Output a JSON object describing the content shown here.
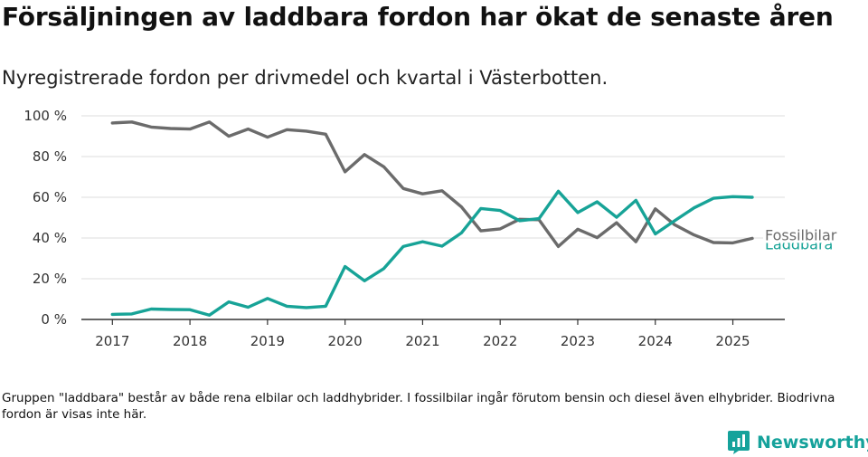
{
  "title": "Försäljningen av laddbara fordon har ökat de senaste åren",
  "subtitle": "Nyregistrerade fordon per drivmedel och kvartal i Västerbotten.",
  "footnote": "Gruppen \"laddbara\" består av både rena elbilar och laddhybrider. I fossilbilar ingår förutom bensin och diesel även elhybrider. Biodrivna fordon är visas inte här.",
  "brand": {
    "name": "Newsworthy",
    "color": "#15a29b"
  },
  "chart_data": {
    "type": "line",
    "title": "Försäljningen av laddbara fordon har ökat de senaste åren",
    "subtitle": "Nyregistrerade fordon per drivmedel och kvartal i Västerbotten.",
    "xlabel": "",
    "ylabel": "",
    "ylim": [
      0,
      100
    ],
    "xlim": [
      2016.6,
      2025.67
    ],
    "grid": true,
    "y_ticks": [
      0,
      20,
      40,
      60,
      80,
      100
    ],
    "y_tick_labels": [
      "0 %",
      "20 %",
      "40 %",
      "60 %",
      "80 %",
      "100 %"
    ],
    "x_ticks": [
      2017,
      2018,
      2019,
      2020,
      2021,
      2022,
      2023,
      2024,
      2025
    ],
    "x_tick_labels": [
      "2017",
      "2018",
      "2019",
      "2020",
      "2021",
      "2022",
      "2023",
      "2024",
      "2025"
    ],
    "x": [
      2017.0,
      2017.25,
      2017.5,
      2017.75,
      2018.0,
      2018.25,
      2018.5,
      2018.75,
      2019.0,
      2019.25,
      2019.5,
      2019.75,
      2020.0,
      2020.25,
      2020.5,
      2020.75,
      2021.0,
      2021.25,
      2021.5,
      2021.75,
      2022.0,
      2022.25,
      2022.5,
      2022.75,
      2023.0,
      2023.25,
      2023.5,
      2023.75,
      2024.0,
      2024.25,
      2024.5,
      2024.75,
      2025.0,
      2025.25
    ],
    "series": [
      {
        "name": "Fossilbilar",
        "color": "#6b6b6b",
        "values": [
          96.5,
          97,
          94.5,
          93.8,
          93.5,
          97,
          90,
          93.5,
          89.5,
          93.2,
          92.5,
          91,
          72.5,
          81,
          75,
          64.3,
          61.7,
          63.2,
          55.3,
          43.5,
          44.5,
          49.2,
          49,
          35.8,
          44.3,
          40.2,
          47.5,
          38.2,
          54.3,
          46.5,
          41.5,
          37.8,
          37.6,
          39.8
        ]
      },
      {
        "name": "Laddbara",
        "color": "#17a397",
        "values": [
          2.5,
          2.7,
          5.1,
          4.9,
          4.8,
          2.1,
          8.6,
          6.0,
          10.3,
          6.5,
          5.8,
          6.5,
          26,
          19,
          25,
          35.8,
          38.2,
          36,
          42.5,
          54.5,
          53.5,
          48.5,
          49.5,
          63,
          52.5,
          57.8,
          50.2,
          58.5,
          42,
          48.5,
          54.8,
          59.5,
          60.3,
          60
        ]
      }
    ],
    "labels": [
      {
        "series": "Fossilbilar",
        "text": "Fossilbilar",
        "color": "#6b6b6b"
      },
      {
        "series": "Laddbara",
        "text": "Laddbara",
        "color": "#17a397"
      }
    ]
  }
}
